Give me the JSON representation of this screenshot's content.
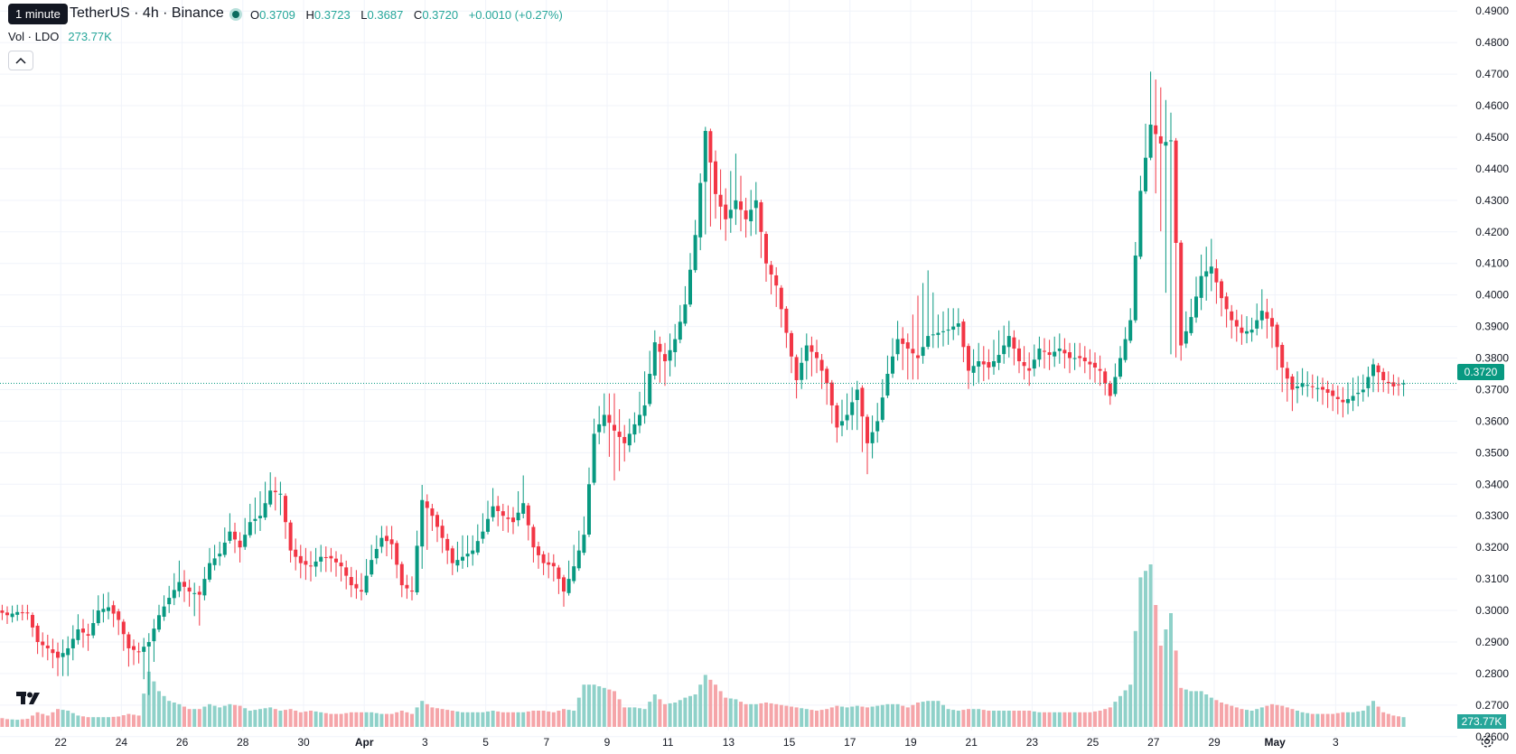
{
  "header": {
    "tooltip": "1 minute",
    "symbol_title": "TetherUS · 4h · Binance",
    "ohlc": {
      "o_label": "O",
      "o": "0.3709",
      "h_label": "H",
      "h": "0.3723",
      "l_label": "L",
      "l": "0.3687",
      "c_label": "C",
      "c": "0.3720",
      "change": "+0.0010 (+0.27%)"
    },
    "volume_label": "Vol · LDO",
    "volume_value": "273.77K",
    "live_status_icon": "live-dot-icon",
    "collapse_icon": "chevron-up-icon"
  },
  "colors": {
    "up": "#089981",
    "down": "#f23645",
    "up_vol": "#8fd1c9",
    "down_vol": "#f5a5a9",
    "grid": "#f0f3fa",
    "axis_text": "#131722",
    "current_line": "#089981"
  },
  "price_tag": "0.3720",
  "volume_tag": "273.77K",
  "logo_icon": "tradingview-logo-icon",
  "settings_icon": "gear-icon",
  "chart_data": {
    "type": "candlestick",
    "title": "TetherUS · 4h · Binance",
    "y_ticks": [
      "0.4900",
      "0.4800",
      "0.4700",
      "0.4600",
      "0.4500",
      "0.4400",
      "0.4300",
      "0.4200",
      "0.4100",
      "0.4000",
      "0.3900",
      "0.3800",
      "0.3700",
      "0.3600",
      "0.3500",
      "0.3400",
      "0.3300",
      "0.3200",
      "0.3100",
      "0.3000",
      "0.2900",
      "0.2800",
      "0.2700",
      "0.2600"
    ],
    "ylim": [
      0.2545,
      0.4935
    ],
    "current_price": 0.372,
    "x_ticks": [
      {
        "label": "22",
        "day": 22
      },
      {
        "label": "24",
        "day": 24
      },
      {
        "label": "26",
        "day": 26
      },
      {
        "label": "28",
        "day": 28
      },
      {
        "label": "30",
        "day": 30
      },
      {
        "label": "Apr",
        "day": 32,
        "bold": true
      },
      {
        "label": "3",
        "day": 34
      },
      {
        "label": "5",
        "day": 36
      },
      {
        "label": "7",
        "day": 38
      },
      {
        "label": "9",
        "day": 40
      },
      {
        "label": "11",
        "day": 42
      },
      {
        "label": "13",
        "day": 44
      },
      {
        "label": "15",
        "day": 46
      },
      {
        "label": "17",
        "day": 48
      },
      {
        "label": "19",
        "day": 50
      },
      {
        "label": "21",
        "day": 52
      },
      {
        "label": "23",
        "day": 54
      },
      {
        "label": "25",
        "day": 56
      },
      {
        "label": "27",
        "day": 58
      },
      {
        "label": "29",
        "day": 60
      },
      {
        "label": "May",
        "day": 62,
        "bold": true
      },
      {
        "label": "3",
        "day": 64
      }
    ],
    "anchors": [
      [
        0,
        0.3,
        0.3015,
        0.299,
        0.3
      ],
      [
        2,
        0.2985,
        0.3005,
        0.2965,
        0.24
      ],
      [
        4,
        0.2995,
        0.301,
        0.2975,
        0.22
      ],
      [
        6,
        0.2992,
        0.301,
        0.2978,
        0.25
      ],
      [
        8,
        0.29,
        0.293,
        0.287,
        0.45
      ],
      [
        10,
        0.288,
        0.2915,
        0.285,
        0.35
      ],
      [
        12,
        0.285,
        0.289,
        0.28,
        0.55
      ],
      [
        14,
        0.288,
        0.291,
        0.28,
        0.5
      ],
      [
        16,
        0.294,
        0.298,
        0.29,
        0.35
      ],
      [
        18,
        0.292,
        0.295,
        0.288,
        0.3
      ],
      [
        20,
        0.3,
        0.304,
        0.296,
        0.3
      ],
      [
        22,
        0.301,
        0.305,
        0.298,
        0.3
      ],
      [
        24,
        0.297,
        0.2995,
        0.293,
        0.32
      ],
      [
        26,
        0.288,
        0.291,
        0.283,
        0.4
      ],
      [
        28,
        0.287,
        0.289,
        0.284,
        0.35
      ],
      [
        30,
        0.29,
        0.292,
        0.274,
        1.7
      ],
      [
        32,
        0.2985,
        0.301,
        0.295,
        1.1
      ],
      [
        34,
        0.304,
        0.307,
        0.3,
        0.8
      ],
      [
        36,
        0.309,
        0.315,
        0.305,
        0.7
      ],
      [
        38,
        0.306,
        0.309,
        0.302,
        0.55
      ],
      [
        40,
        0.305,
        0.307,
        0.296,
        0.55
      ],
      [
        42,
        0.315,
        0.319,
        0.312,
        0.7
      ],
      [
        44,
        0.318,
        0.321,
        0.315,
        0.6
      ],
      [
        46,
        0.325,
        0.33,
        0.322,
        0.7
      ],
      [
        48,
        0.32,
        0.324,
        0.316,
        0.65
      ],
      [
        50,
        0.328,
        0.333,
        0.324,
        0.5
      ],
      [
        52,
        0.33,
        0.337,
        0.326,
        0.55
      ],
      [
        54,
        0.338,
        0.343,
        0.334,
        0.6
      ],
      [
        56,
        0.337,
        0.34,
        0.331,
        0.5
      ],
      [
        58,
        0.319,
        0.324,
        0.316,
        0.55
      ],
      [
        60,
        0.315,
        0.32,
        0.311,
        0.45
      ],
      [
        62,
        0.314,
        0.318,
        0.31,
        0.5
      ],
      [
        64,
        0.317,
        0.32,
        0.313,
        0.45
      ],
      [
        66,
        0.3165,
        0.319,
        0.313,
        0.4
      ],
      [
        68,
        0.314,
        0.317,
        0.31,
        0.4
      ],
      [
        70,
        0.308,
        0.313,
        0.305,
        0.45
      ],
      [
        72,
        0.306,
        0.311,
        0.304,
        0.45
      ],
      [
        74,
        0.316,
        0.32,
        0.312,
        0.45
      ],
      [
        76,
        0.323,
        0.326,
        0.319,
        0.4
      ],
      [
        78,
        0.321,
        0.326,
        0.317,
        0.4
      ],
      [
        80,
        0.308,
        0.311,
        0.305,
        0.5
      ],
      [
        82,
        0.306,
        0.31,
        0.304,
        0.4
      ],
      [
        84,
        0.335,
        0.339,
        0.314,
        0.8
      ],
      [
        86,
        0.33,
        0.333,
        0.326,
        0.6
      ],
      [
        88,
        0.323,
        0.328,
        0.319,
        0.55
      ],
      [
        90,
        0.315,
        0.319,
        0.312,
        0.5
      ],
      [
        92,
        0.317,
        0.323,
        0.314,
        0.45
      ],
      [
        94,
        0.319,
        0.323,
        0.315,
        0.45
      ],
      [
        96,
        0.325,
        0.33,
        0.322,
        0.45
      ],
      [
        98,
        0.333,
        0.338,
        0.329,
        0.5
      ],
      [
        100,
        0.33,
        0.333,
        0.326,
        0.45
      ],
      [
        102,
        0.328,
        0.332,
        0.325,
        0.45
      ],
      [
        104,
        0.334,
        0.342,
        0.33,
        0.45
      ],
      [
        106,
        0.32,
        0.324,
        0.316,
        0.5
      ],
      [
        108,
        0.315,
        0.318,
        0.312,
        0.5
      ],
      [
        110,
        0.314,
        0.317,
        0.31,
        0.45
      ],
      [
        112,
        0.306,
        0.31,
        0.302,
        0.55
      ],
      [
        114,
        0.314,
        0.32,
        0.31,
        0.5
      ],
      [
        116,
        0.324,
        0.329,
        0.32,
        1.3
      ],
      [
        118,
        0.356,
        0.36,
        0.35,
        1.3
      ],
      [
        120,
        0.362,
        0.368,
        0.357,
        1.2
      ],
      [
        122,
        0.357,
        0.368,
        0.342,
        1.1
      ],
      [
        124,
        0.353,
        0.358,
        0.348,
        0.6
      ],
      [
        126,
        0.359,
        0.362,
        0.354,
        0.6
      ],
      [
        128,
        0.365,
        0.375,
        0.36,
        0.55
      ],
      [
        130,
        0.385,
        0.388,
        0.374,
        1.0
      ],
      [
        132,
        0.379,
        0.384,
        0.372,
        0.7
      ],
      [
        134,
        0.386,
        0.39,
        0.378,
        0.75
      ],
      [
        136,
        0.397,
        0.402,
        0.393,
        0.9
      ],
      [
        138,
        0.419,
        0.423,
        0.41,
        1.0
      ],
      [
        140,
        0.452,
        0.4525,
        0.42,
        1.6
      ],
      [
        142,
        0.432,
        0.445,
        0.425,
        1.3
      ],
      [
        144,
        0.424,
        0.433,
        0.418,
        0.9
      ],
      [
        146,
        0.43,
        0.444,
        0.423,
        0.85
      ],
      [
        148,
        0.424,
        0.43,
        0.419,
        0.7
      ],
      [
        150,
        0.43,
        0.435,
        0.42,
        0.7
      ],
      [
        152,
        0.41,
        0.412,
        0.405,
        0.75
      ],
      [
        154,
        0.403,
        0.408,
        0.397,
        0.7
      ],
      [
        156,
        0.388,
        0.395,
        0.384,
        0.65
      ],
      [
        158,
        0.373,
        0.378,
        0.368,
        0.6
      ],
      [
        160,
        0.384,
        0.387,
        0.374,
        0.55
      ],
      [
        162,
        0.38,
        0.385,
        0.376,
        0.5
      ],
      [
        164,
        0.372,
        0.376,
        0.366,
        0.55
      ],
      [
        166,
        0.358,
        0.364,
        0.354,
        0.65
      ],
      [
        168,
        0.362,
        0.368,
        0.358,
        0.6
      ],
      [
        170,
        0.37,
        0.372,
        0.358,
        0.65
      ],
      [
        172,
        0.353,
        0.357,
        0.344,
        0.6
      ],
      [
        174,
        0.36,
        0.365,
        0.354,
        0.65
      ],
      [
        176,
        0.375,
        0.38,
        0.369,
        0.7
      ],
      [
        178,
        0.386,
        0.391,
        0.38,
        0.7
      ],
      [
        180,
        0.383,
        0.387,
        0.374,
        0.6
      ],
      [
        182,
        0.38,
        0.399,
        0.374,
        0.75
      ],
      [
        184,
        0.387,
        0.407,
        0.384,
        0.8
      ],
      [
        186,
        0.388,
        0.393,
        0.384,
        0.8
      ],
      [
        188,
        0.389,
        0.395,
        0.385,
        0.55
      ],
      [
        190,
        0.391,
        0.395,
        0.388,
        0.5
      ],
      [
        192,
        0.376,
        0.38,
        0.371,
        0.55
      ],
      [
        194,
        0.379,
        0.384,
        0.373,
        0.55
      ],
      [
        196,
        0.377,
        0.382,
        0.374,
        0.5
      ],
      [
        198,
        0.381,
        0.388,
        0.377,
        0.5
      ],
      [
        200,
        0.387,
        0.391,
        0.381,
        0.5
      ],
      [
        202,
        0.379,
        0.385,
        0.376,
        0.5
      ],
      [
        204,
        0.376,
        0.381,
        0.372,
        0.5
      ],
      [
        206,
        0.383,
        0.386,
        0.378,
        0.45
      ],
      [
        208,
        0.381,
        0.385,
        0.377,
        0.45
      ],
      [
        210,
        0.383,
        0.387,
        0.379,
        0.45
      ],
      [
        212,
        0.38,
        0.384,
        0.376,
        0.45
      ],
      [
        214,
        0.38,
        0.384,
        0.378,
        0.45
      ],
      [
        216,
        0.378,
        0.382,
        0.374,
        0.45
      ],
      [
        218,
        0.376,
        0.38,
        0.372,
        0.5
      ],
      [
        220,
        0.368,
        0.372,
        0.366,
        0.6
      ],
      [
        222,
        0.38,
        0.383,
        0.376,
        0.95
      ],
      [
        224,
        0.392,
        0.395,
        0.387,
        1.3
      ],
      [
        226,
        0.433,
        0.437,
        0.424,
        4.6
      ],
      [
        228,
        0.454,
        0.47,
        0.445,
        5.0
      ],
      [
        230,
        0.448,
        0.465,
        0.421,
        2.5
      ],
      [
        232,
        0.449,
        0.457,
        0.382,
        3.5
      ],
      [
        234,
        0.384,
        0.39,
        0.38,
        1.2
      ],
      [
        236,
        0.393,
        0.398,
        0.388,
        1.1
      ],
      [
        238,
        0.406,
        0.412,
        0.396,
        1.1
      ],
      [
        240,
        0.409,
        0.417,
        0.402,
        0.9
      ],
      [
        242,
        0.399,
        0.404,
        0.394,
        0.75
      ],
      [
        244,
        0.392,
        0.396,
        0.387,
        0.65
      ],
      [
        246,
        0.388,
        0.393,
        0.385,
        0.55
      ],
      [
        248,
        0.389,
        0.392,
        0.386,
        0.5
      ],
      [
        250,
        0.395,
        0.401,
        0.39,
        0.6
      ],
      [
        252,
        0.39,
        0.395,
        0.384,
        0.7
      ],
      [
        254,
        0.377,
        0.382,
        0.37,
        0.65
      ],
      [
        256,
        0.37,
        0.374,
        0.364,
        0.55
      ],
      [
        258,
        0.372,
        0.376,
        0.369,
        0.45
      ],
      [
        260,
        0.371,
        0.374,
        0.368,
        0.4
      ],
      [
        262,
        0.37,
        0.373,
        0.366,
        0.4
      ],
      [
        264,
        0.368,
        0.371,
        0.364,
        0.4
      ],
      [
        266,
        0.366,
        0.37,
        0.362,
        0.45
      ],
      [
        268,
        0.368,
        0.373,
        0.364,
        0.45
      ],
      [
        270,
        0.37,
        0.374,
        0.367,
        0.5
      ],
      [
        272,
        0.378,
        0.379,
        0.37,
        0.8
      ],
      [
        274,
        0.373,
        0.376,
        0.37,
        0.45
      ],
      [
        276,
        0.371,
        0.374,
        0.369,
        0.35
      ],
      [
        278,
        0.372,
        0.3723,
        0.3687,
        0.3
      ]
    ]
  }
}
